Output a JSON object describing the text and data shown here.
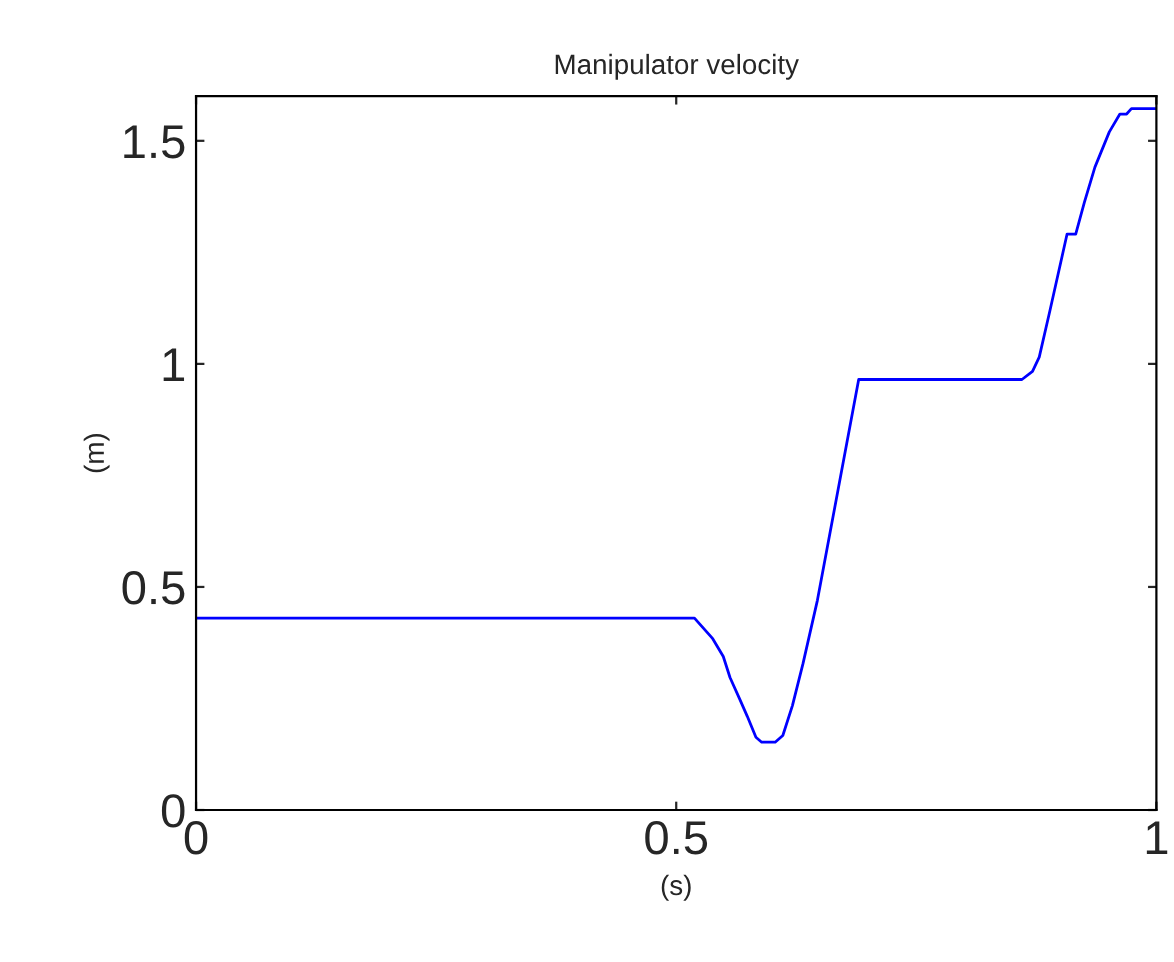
{
  "chart_data": {
    "type": "line",
    "title": "Manipulator velocity",
    "xlabel": "(s)",
    "ylabel": "(m)",
    "xlim": [
      0,
      1
    ],
    "xticks": [
      0,
      0.5,
      1
    ],
    "ylim": [
      0,
      1.6
    ],
    "yticks": [
      0,
      0.5,
      1,
      1.5
    ],
    "grid": false,
    "legend": false,
    "series": [
      {
        "color": "#0000ff",
        "x": [
          0,
          0.519,
          0.538,
          0.549,
          0.556,
          0.566,
          0.574,
          0.583,
          0.589,
          0.603,
          0.611,
          0.621,
          0.632,
          0.647,
          0.69,
          0.86,
          0.871,
          0.878,
          0.889,
          0.907,
          0.916,
          0.925,
          0.936,
          0.951,
          0.962,
          0.969,
          0.974,
          1.0
        ],
        "values": [
          0.43,
          0.43,
          0.384,
          0.344,
          0.297,
          0.249,
          0.21,
          0.163,
          0.152,
          0.152,
          0.167,
          0.234,
          0.328,
          0.47,
          0.965,
          0.965,
          0.983,
          1.015,
          1.118,
          1.291,
          1.291,
          1.362,
          1.441,
          1.52,
          1.56,
          1.56,
          1.572,
          1.572
        ]
      }
    ]
  }
}
